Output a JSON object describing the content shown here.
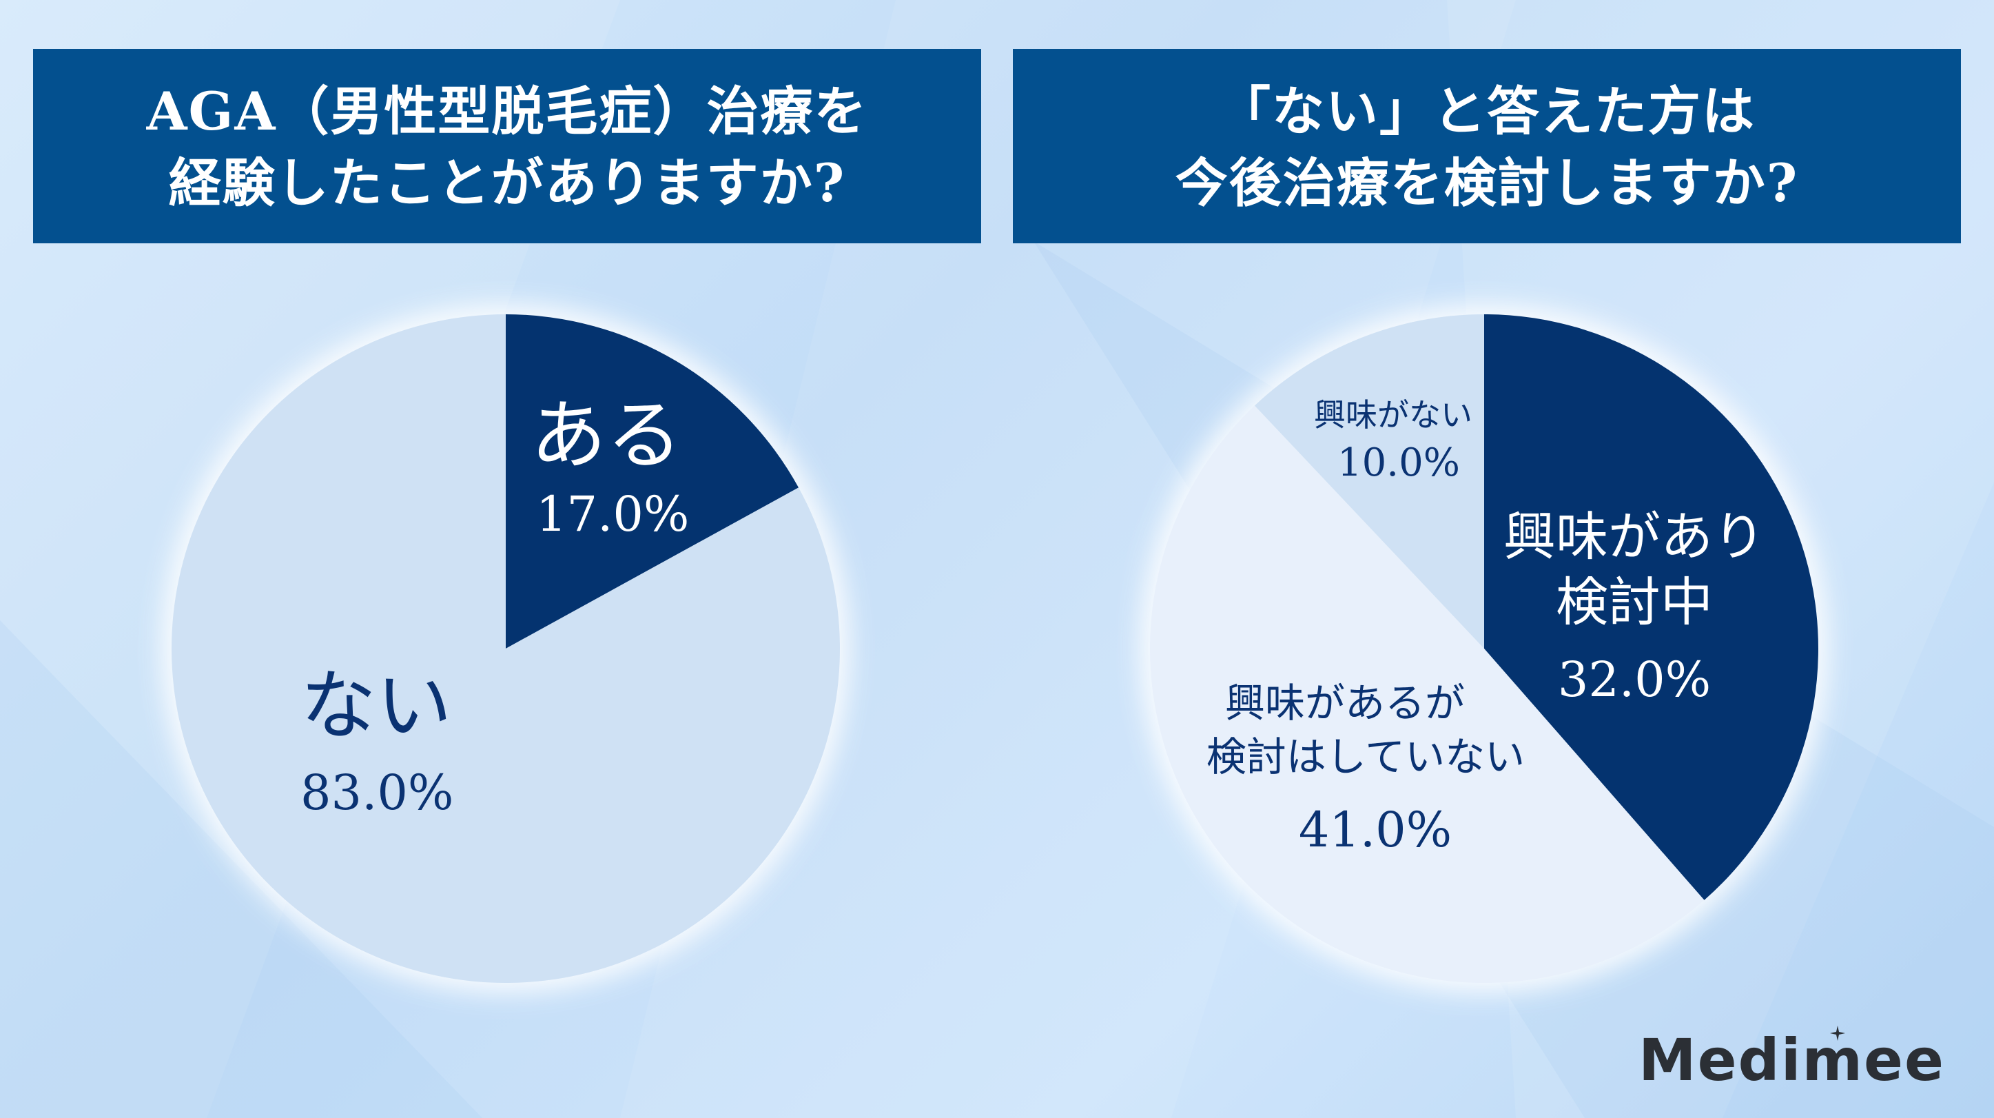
{
  "colors": {
    "banner": "#03508f",
    "dark_slice": "#04336f",
    "light_slice": "#cfe1f4",
    "lighter_slice": "#e8f0fb",
    "label_text": "#0a3272"
  },
  "left_banner": {
    "line1": "AGA（男性型脱毛症）治療を",
    "line2": "経験したことがありますか?"
  },
  "right_banner": {
    "line1": "「ない」と答えた方は",
    "line2": "今後治療を検討しますか?"
  },
  "chart_data": [
    {
      "type": "pie",
      "title": "AGA（男性型脱毛症）治療を経験したことがありますか?",
      "slices": [
        {
          "label": "ある",
          "value": 17.0,
          "display": "17.0%",
          "color": "#04336f"
        },
        {
          "label": "ない",
          "value": 83.0,
          "display": "83.0%",
          "color": "#cfe1f4"
        }
      ]
    },
    {
      "type": "pie",
      "title": "「ない」と答えた方は今後治療を検討しますか?",
      "slices": [
        {
          "label": "興味があり検討中",
          "label_lines": [
            "興味があり",
            "検討中"
          ],
          "value": 32.0,
          "display": "32.0%",
          "color": "#04336f"
        },
        {
          "label": "興味があるが検討はしていない",
          "label_lines": [
            "興味があるが",
            "検討はしていない"
          ],
          "value": 41.0,
          "display": "41.0%",
          "color": "#e8f0fb"
        },
        {
          "label": "興味がない",
          "label_lines": [
            "興味がない"
          ],
          "value": 10.0,
          "display": "10.0%",
          "color": "#cfe1f4"
        }
      ]
    }
  ],
  "logo": {
    "text": "Medimee",
    "icon": "sparkle-icon"
  }
}
